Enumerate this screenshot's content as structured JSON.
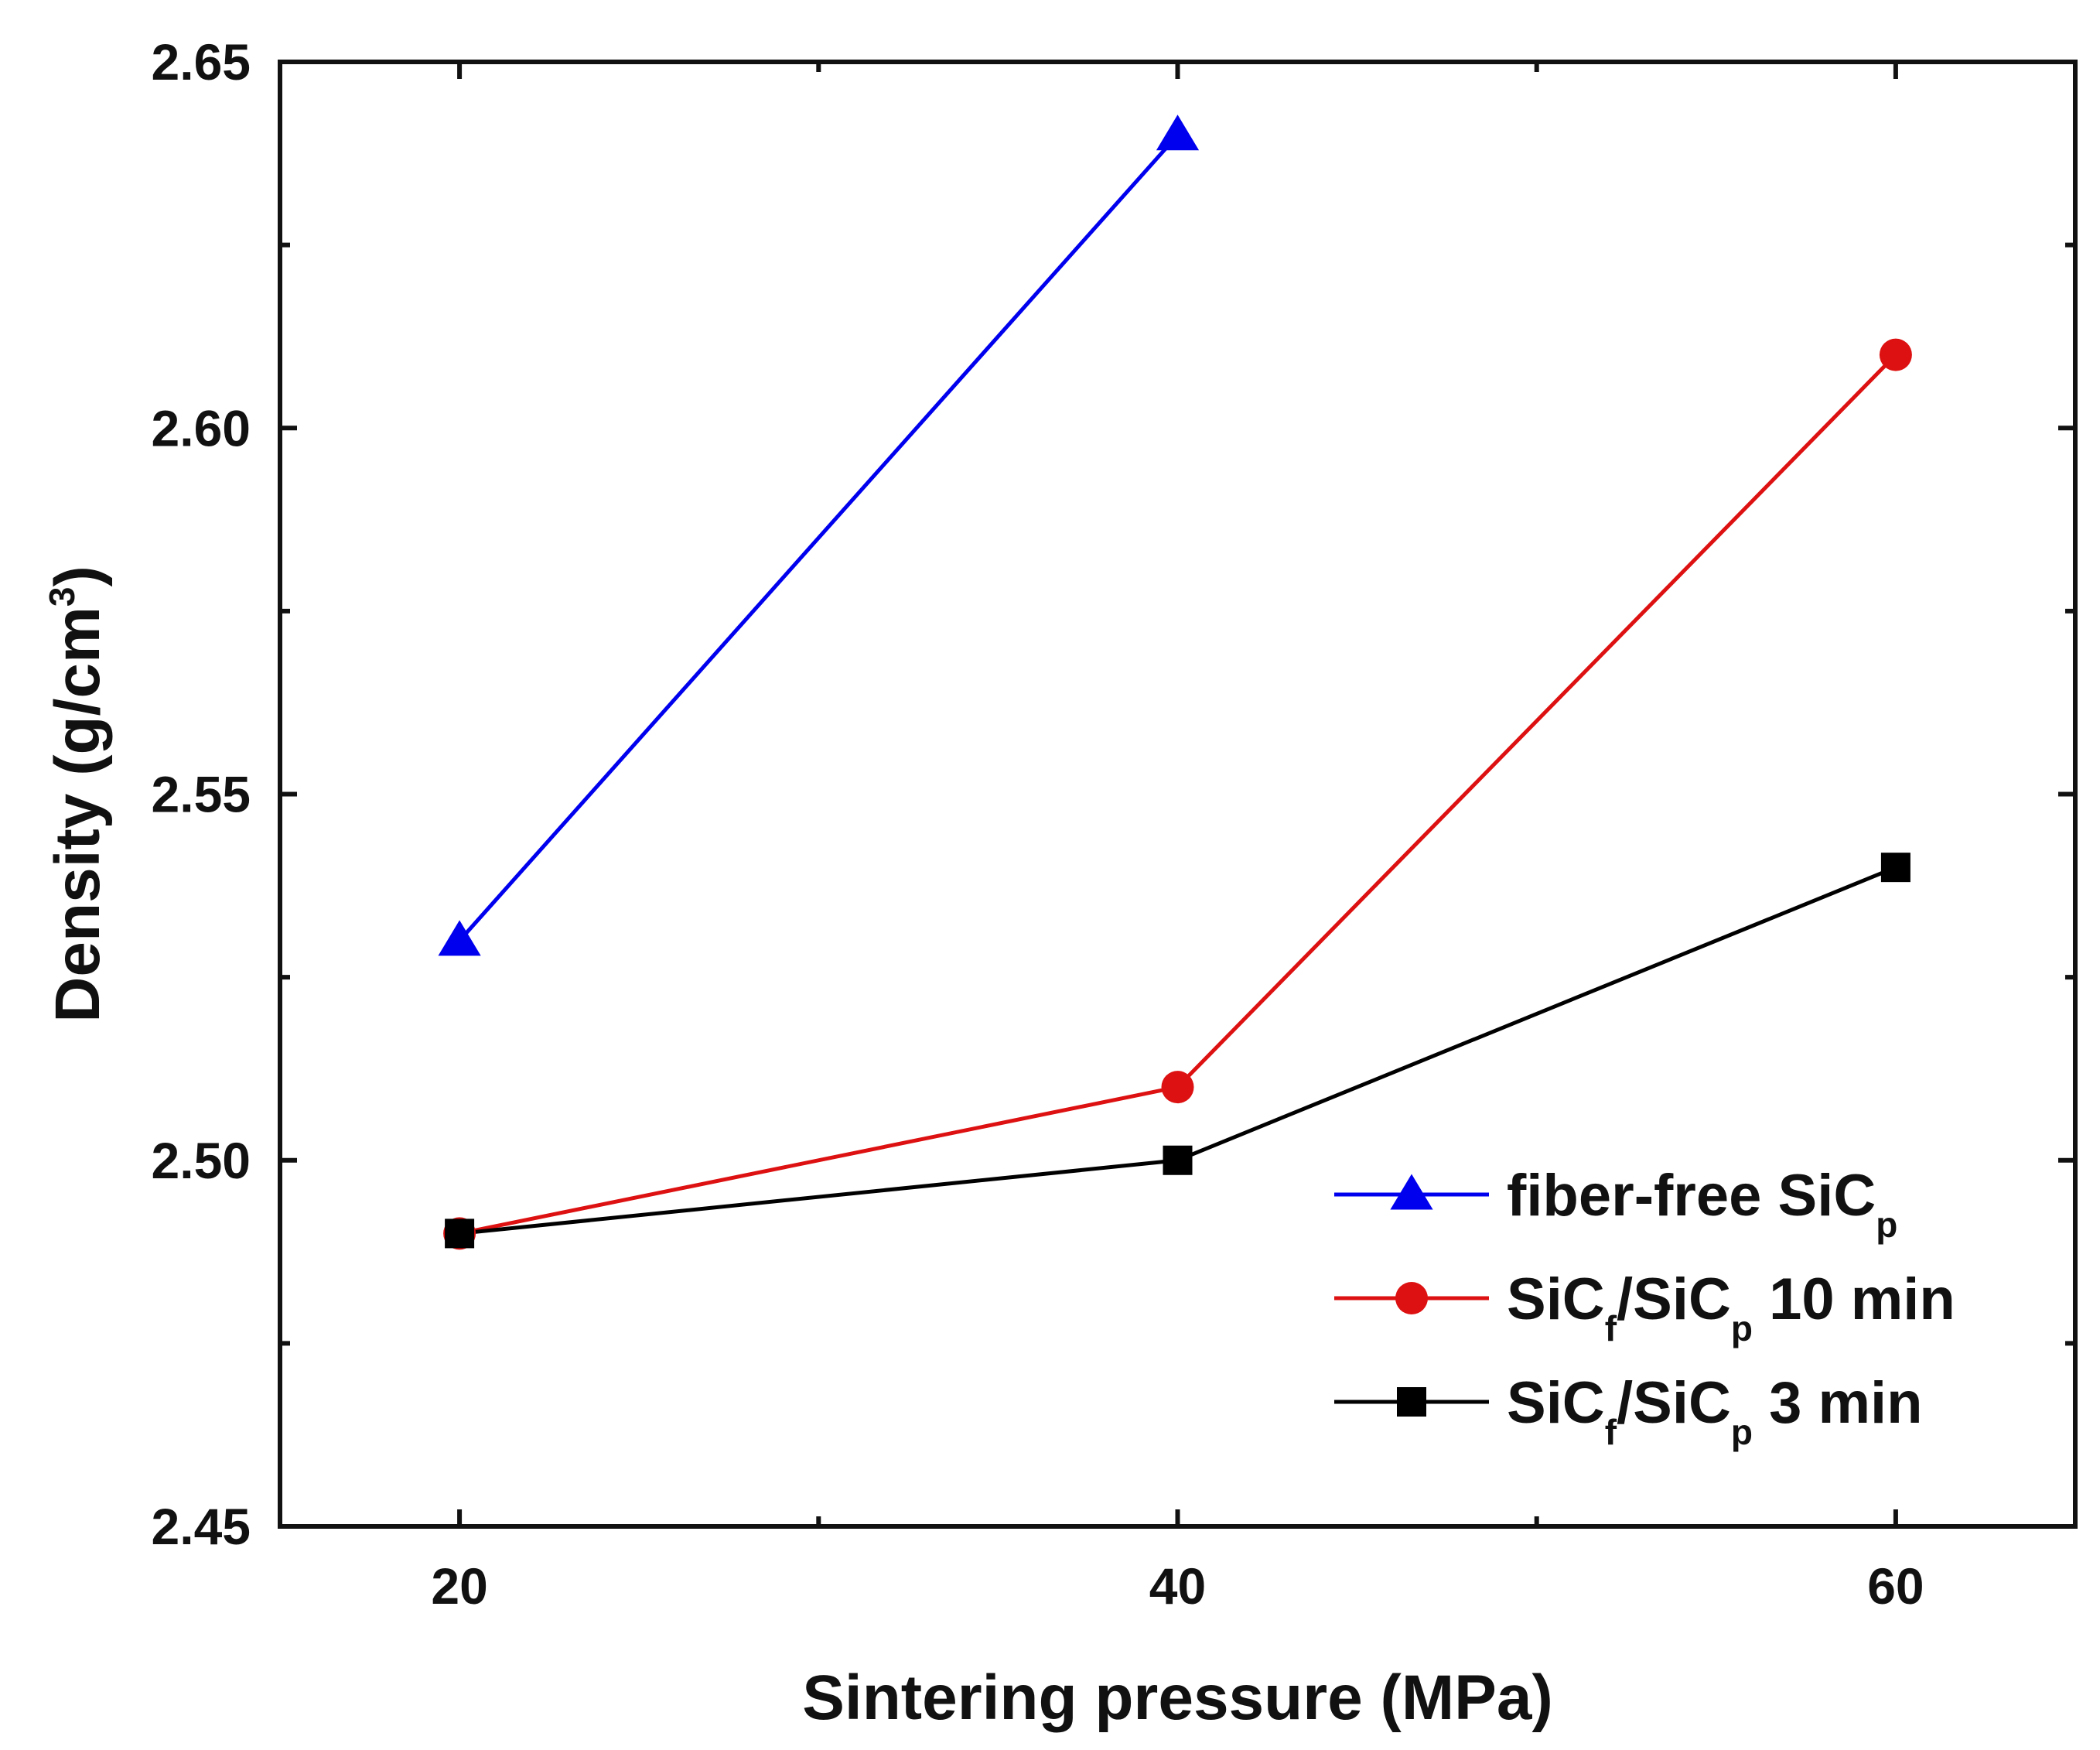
{
  "chart_data": {
    "type": "line",
    "title": "",
    "xlabel": "Sintering pressure (MPa)",
    "ylabel_parts": {
      "main": "Density (g/cm",
      "sup": "3",
      "close": ")"
    },
    "xlim": [
      15,
      65
    ],
    "ylim": [
      2.45,
      2.65
    ],
    "x_ticks": [
      20,
      40,
      60
    ],
    "x_tick_labels": [
      "20",
      "40",
      "60"
    ],
    "x_minor_ticks": [
      30,
      50
    ],
    "y_ticks": [
      2.45,
      2.5,
      2.55,
      2.6,
      2.65
    ],
    "y_tick_labels": [
      "2.45",
      "2.50",
      "2.55",
      "2.60",
      "2.65"
    ],
    "y_minor_ticks": [
      2.475,
      2.525,
      2.575,
      2.625
    ],
    "grid": false,
    "legend_position": "bottom-right",
    "series": [
      {
        "name": "fiber-free SiCp",
        "label_parts": [
          {
            "t": "fiber-free SiC",
            "s": ""
          },
          {
            "t": "p",
            "s": "sub"
          }
        ],
        "color": "#0000ee",
        "marker": "triangle",
        "x": [
          20,
          40
        ],
        "y": [
          2.53,
          2.64
        ]
      },
      {
        "name": "SiCf/SiCp 10 min",
        "label_parts": [
          {
            "t": "SiC",
            "s": ""
          },
          {
            "t": "f",
            "s": "sub"
          },
          {
            "t": "/SiC",
            "s": ""
          },
          {
            "t": "p",
            "s": "sub"
          },
          {
            "t": " 10 min",
            "s": ""
          }
        ],
        "color": "#dd1111",
        "marker": "circle",
        "x": [
          20,
          40,
          60
        ],
        "y": [
          2.49,
          2.51,
          2.61
        ]
      },
      {
        "name": "SiCf/SiCp 3 min",
        "label_parts": [
          {
            "t": "SiC",
            "s": ""
          },
          {
            "t": "f",
            "s": "sub"
          },
          {
            "t": "/SiC",
            "s": ""
          },
          {
            "t": "p",
            "s": "sub"
          },
          {
            "t": " 3 min",
            "s": ""
          }
        ],
        "color": "#000000",
        "marker": "square",
        "x": [
          20,
          40,
          60
        ],
        "y": [
          2.49,
          2.5,
          2.54
        ]
      }
    ]
  }
}
